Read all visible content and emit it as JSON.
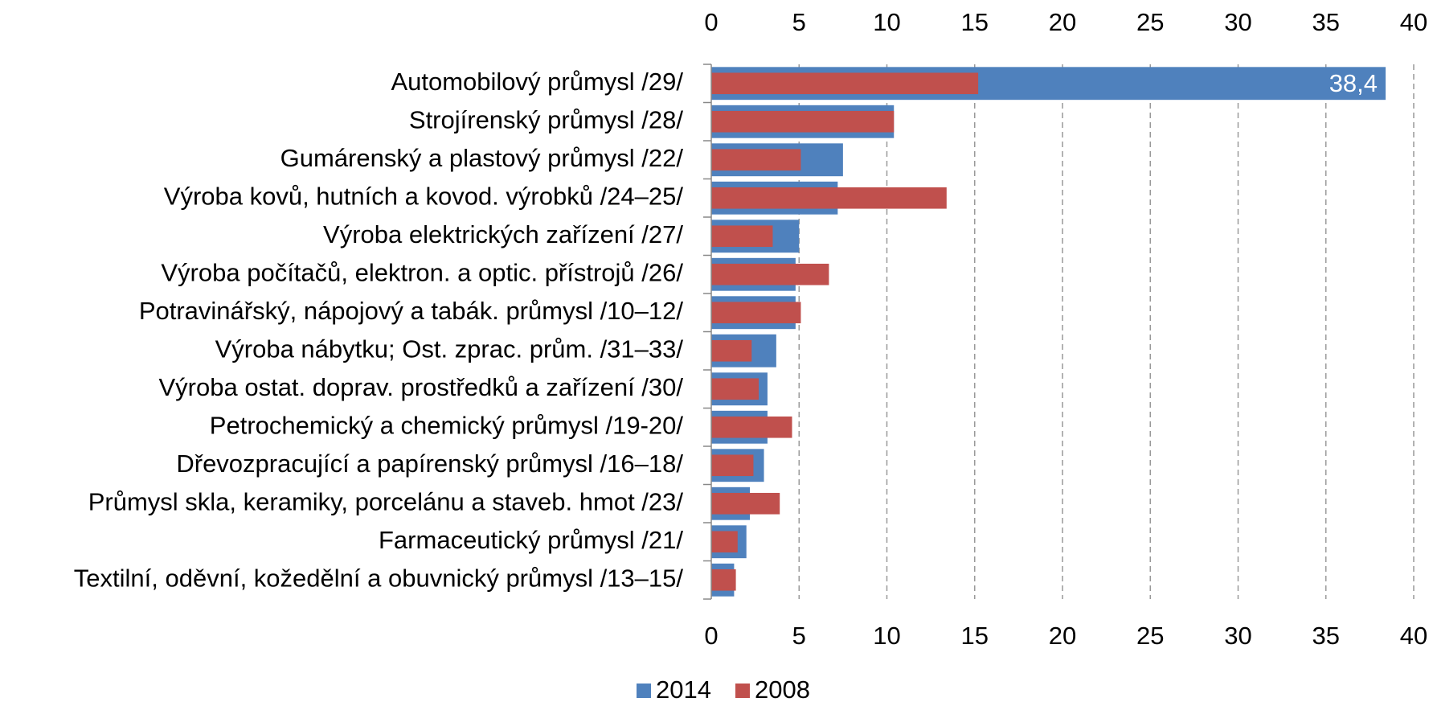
{
  "chart_data": {
    "type": "bar",
    "orientation": "horizontal",
    "overlap": true,
    "categories": [
      "Automobilový průmysl /29/",
      "Strojírenský průmysl /28/",
      "Gumárenský a plastový průmysl /22/",
      "Výroba kovů, hutních a kovod. výrobků /24–25/",
      "Výroba elektrických zařízení /27/",
      "Výroba počítačů, elektron. a optic. přístrojů /26/",
      "Potravinářský, nápojový a tabák. průmysl /10–12/",
      "Výroba nábytku; Ost. zprac. prům. /31–33/",
      "Výroba ostat. doprav. prostředků a zařízení /30/",
      "Petrochemický a chemický průmysl /19-20/",
      "Dřevozpracující a papírenský průmysl /16–18/",
      "Průmysl skla, keramiky, porcelánu a staveb. hmot /23/",
      "Farmaceutický průmysl /21/",
      "Textilní, oděvní, kožedělní a obuvnický průmysl /13–15/"
    ],
    "series": [
      {
        "name": "2014",
        "color": "#4f81bd",
        "values": [
          38.4,
          10.4,
          7.5,
          7.2,
          5.0,
          4.8,
          4.8,
          3.7,
          3.2,
          3.2,
          3.0,
          2.2,
          2.0,
          1.3
        ],
        "value_labels": [
          "38,4",
          null,
          null,
          null,
          null,
          null,
          null,
          null,
          null,
          null,
          null,
          null,
          null,
          null
        ]
      },
      {
        "name": "2008",
        "color": "#c0504d",
        "values": [
          15.2,
          10.4,
          5.1,
          13.4,
          3.5,
          6.7,
          5.1,
          2.3,
          2.7,
          4.6,
          2.4,
          3.9,
          1.5,
          1.4
        ]
      }
    ],
    "xlim": [
      0,
      40
    ],
    "xticks": [
      0,
      5,
      10,
      15,
      20,
      25,
      30,
      35,
      40
    ],
    "grid": true,
    "legend": "bottom"
  }
}
